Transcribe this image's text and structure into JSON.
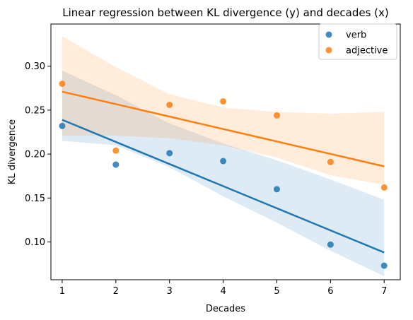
{
  "chart_data": {
    "type": "scatter",
    "title": "Linear regression between KL divergence (y) and decades (x)",
    "xlabel": "Decades",
    "ylabel": "KL divergence",
    "xlim": [
      0.79,
      7.3
    ],
    "ylim": [
      0.057,
      0.348
    ],
    "xticks": [
      1,
      2,
      3,
      4,
      5,
      6,
      7
    ],
    "yticks": [
      0.1,
      0.15,
      0.2,
      0.25,
      0.3
    ],
    "ytick_labels": [
      "0.10",
      "0.15",
      "0.20",
      "0.25",
      "0.30"
    ],
    "legend_position": "top-right",
    "series": [
      {
        "name": "verb",
        "color": "#1f77b4",
        "x": [
          1,
          2,
          3,
          4,
          5,
          6,
          7
        ],
        "y": [
          0.232,
          0.188,
          0.201,
          0.192,
          0.16,
          0.097,
          0.073
        ],
        "fit": {
          "x": [
            1,
            7
          ],
          "y": [
            0.239,
            0.088
          ]
        },
        "ci_upper": [
          [
            1,
            0.295
          ],
          [
            2,
            0.267
          ],
          [
            3,
            0.235
          ],
          [
            4,
            0.212
          ],
          [
            5,
            0.193
          ],
          [
            6,
            0.171
          ],
          [
            7,
            0.148
          ]
        ],
        "ci_lower": [
          [
            1,
            0.215
          ],
          [
            2,
            0.21
          ],
          [
            3,
            0.185
          ],
          [
            4,
            0.152
          ],
          [
            5,
            0.122
          ],
          [
            6,
            0.09
          ],
          [
            7,
            0.061
          ]
        ]
      },
      {
        "name": "adjective",
        "color": "#ff7f0e",
        "x": [
          1,
          2,
          3,
          4,
          5,
          6,
          7
        ],
        "y": [
          0.28,
          0.204,
          0.256,
          0.26,
          0.244,
          0.191,
          0.162
        ],
        "fit": {
          "x": [
            1,
            7
          ],
          "y": [
            0.271,
            0.186
          ]
        },
        "ci_upper": [
          [
            1,
            0.334
          ],
          [
            2,
            0.299
          ],
          [
            3,
            0.268
          ],
          [
            4,
            0.253
          ],
          [
            5,
            0.248
          ],
          [
            6,
            0.246
          ],
          [
            7,
            0.248
          ]
        ],
        "ci_lower": [
          [
            1,
            0.221
          ],
          [
            2,
            0.221
          ],
          [
            3,
            0.218
          ],
          [
            4,
            0.21
          ],
          [
            5,
            0.196
          ],
          [
            6,
            0.176
          ],
          [
            7,
            0.165
          ]
        ]
      }
    ]
  }
}
